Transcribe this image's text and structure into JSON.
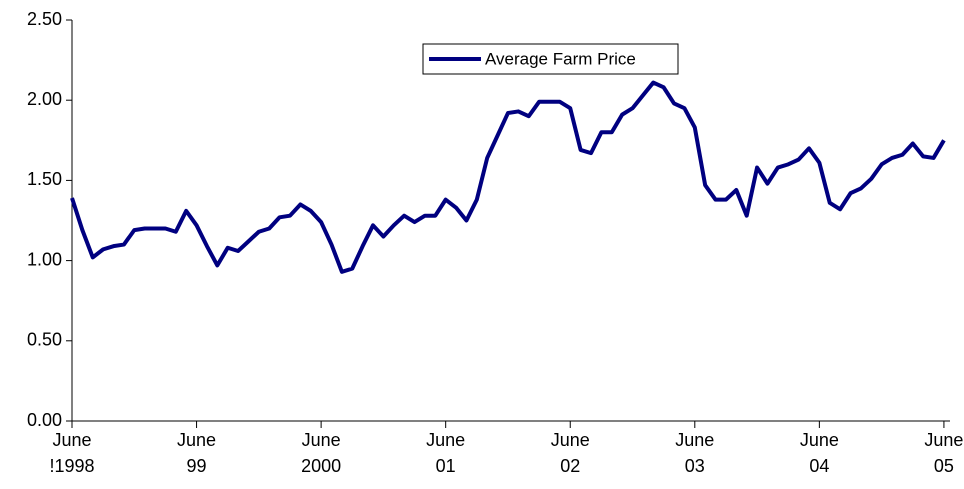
{
  "chart_data": {
    "type": "line",
    "categories": [
      "June\n!1998",
      null,
      null,
      null,
      null,
      null,
      null,
      null,
      null,
      null,
      null,
      null,
      "June\n99",
      null,
      null,
      null,
      null,
      null,
      null,
      null,
      null,
      null,
      null,
      null,
      "June\n2000",
      null,
      null,
      null,
      null,
      null,
      null,
      null,
      null,
      null,
      null,
      null,
      "June\n01",
      null,
      null,
      null,
      null,
      null,
      null,
      null,
      null,
      null,
      null,
      null,
      "June\n02",
      null,
      null,
      null,
      null,
      null,
      null,
      null,
      null,
      null,
      null,
      null,
      "June\n03",
      null,
      null,
      null,
      null,
      null,
      null,
      null,
      null,
      null,
      null,
      null,
      "June\n04",
      null,
      null,
      null,
      null,
      null,
      null,
      null,
      null,
      null,
      null,
      null,
      "June\n05"
    ],
    "series": [
      {
        "name": "Average Farm Price",
        "color": "#000080",
        "values": [
          1.39,
          1.19,
          1.02,
          1.07,
          1.09,
          1.1,
          1.19,
          1.2,
          1.2,
          1.2,
          1.18,
          1.31,
          1.22,
          1.09,
          0.97,
          1.08,
          1.06,
          1.12,
          1.18,
          1.2,
          1.27,
          1.28,
          1.35,
          1.31,
          1.24,
          1.1,
          0.93,
          0.95,
          1.09,
          1.22,
          1.15,
          1.22,
          1.28,
          1.24,
          1.28,
          1.28,
          1.38,
          1.33,
          1.25,
          1.38,
          1.64,
          1.78,
          1.92,
          1.93,
          1.9,
          1.99,
          1.99,
          1.99,
          1.95,
          1.69,
          1.67,
          1.8,
          1.8,
          1.91,
          1.95,
          2.03,
          2.11,
          2.08,
          1.98,
          1.95,
          1.83,
          1.47,
          1.38,
          1.38,
          1.44,
          1.28,
          1.58,
          1.48,
          1.58,
          1.6,
          1.63,
          1.7,
          1.61,
          1.36,
          1.32,
          1.42,
          1.45,
          1.51,
          1.6,
          1.64,
          1.66,
          1.73,
          1.65,
          1.64,
          1.75
        ]
      }
    ],
    "ylim": [
      0,
      2.5
    ],
    "yticks": [
      {
        "value": 0,
        "label": "0.00"
      },
      {
        "value": 0.5,
        "label": "0.50"
      },
      {
        "value": 1,
        "label": "1.00"
      },
      {
        "value": 1.5,
        "label": "1.50"
      },
      {
        "value": 2,
        "label": "2.00"
      },
      {
        "value": 2.5,
        "label": "2.50"
      }
    ],
    "grid": false,
    "legend": "top"
  }
}
